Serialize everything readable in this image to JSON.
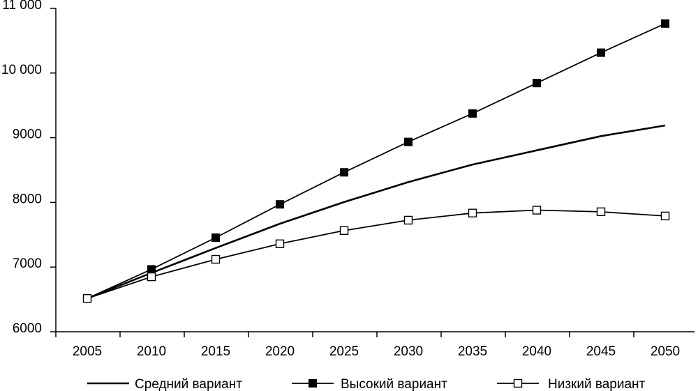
{
  "chart_data": {
    "type": "line",
    "title": "",
    "xlabel": "",
    "ylabel": "",
    "x": [
      2005,
      2010,
      2015,
      2020,
      2025,
      2030,
      2035,
      2040,
      2045,
      2050
    ],
    "x_tick_labels": [
      "2005",
      "2010",
      "2015",
      "2020",
      "2025",
      "2030",
      "2035",
      "2040",
      "2045",
      "2050"
    ],
    "ylim": [
      6000,
      11000
    ],
    "y_ticks": [
      6000,
      7000,
      8000,
      9000,
      10000,
      11000
    ],
    "y_tick_labels": [
      "6000",
      "7000",
      "8000",
      "9000",
      "10 000",
      "11 000"
    ],
    "grid": false,
    "legend_position": "bottom",
    "series": [
      {
        "name": "Средний вариант",
        "marker": "none",
        "color": "#000000",
        "values": [
          6515,
          6910,
          7295,
          7670,
          8005,
          8315,
          8585,
          8805,
          9025,
          9190
        ]
      },
      {
        "name": "Высокий вариант",
        "marker": "filled-square",
        "color": "#000000",
        "values": [
          6515,
          6965,
          7455,
          7970,
          8465,
          8935,
          9375,
          9845,
          10315,
          10765
        ]
      },
      {
        "name": "Низкий вариант",
        "marker": "open-square",
        "color": "#000000",
        "values": [
          6515,
          6850,
          7120,
          7360,
          7565,
          7725,
          7835,
          7880,
          7855,
          7790
        ]
      }
    ]
  }
}
